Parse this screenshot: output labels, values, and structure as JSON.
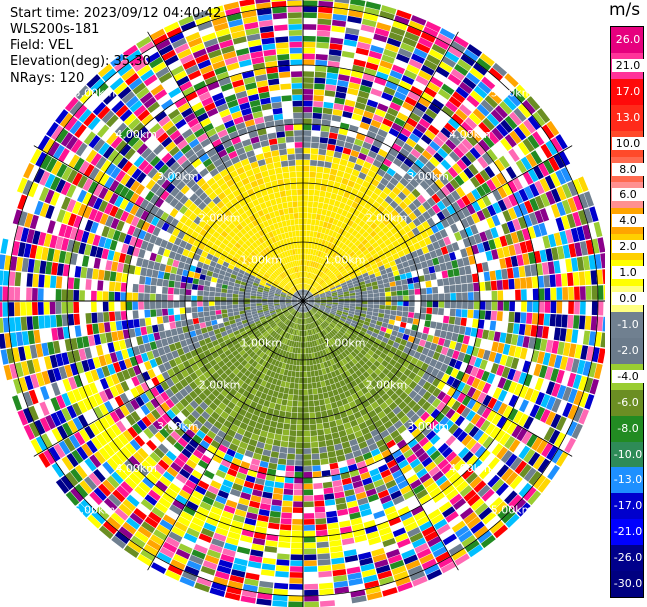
{
  "header": {
    "start_time": "Start time: 2023/09/12 04:40:42",
    "instrument": "WLS200s-181",
    "field": "Field: VEL",
    "elevation": "Elevation(deg): 35.30",
    "nrays": "NRays: 120"
  },
  "chart_data": {
    "type": "ppi-polar",
    "units": "m/s",
    "range_rings_km": [
      1,
      2,
      3,
      4,
      5
    ],
    "range_ring_labels": [
      "1.00km",
      "2.00km",
      "3.00km",
      "4.00km",
      "5.00km"
    ],
    "n_rays": 120,
    "max_range_km": 5.2,
    "spokes_deg": [
      0,
      30,
      60,
      90,
      120,
      150,
      180,
      210,
      240,
      270,
      300,
      330
    ],
    "colorbar": {
      "tick_labels": [
        "26.0",
        "21.0",
        "17.0",
        "13.0",
        "10.0",
        "8.0",
        "6.0",
        "4.0",
        "2.0",
        "1.0",
        "0.0",
        "-1.0",
        "-2.0",
        "-4.0",
        "-6.0",
        "-8.0",
        "-10.0",
        "-13.0",
        "-17.0",
        "-21.0",
        "-26.0",
        "-30.0"
      ],
      "colors": [
        "#e6007e",
        "#ff3399",
        "#ff0a0a",
        "#ff2a1a",
        "#ff4a2a",
        "#ff6a50",
        "#ff9090",
        "#ffa500",
        "#ffd000",
        "#ffff00",
        "#ffff80",
        "#708090",
        "#6b7b8b",
        "#9acd32",
        "#6b8e23",
        "#228b22",
        "#2e8b57",
        "#1e90ff",
        "#0000cd",
        "#0000ff",
        "#00008b",
        "#000080"
      ]
    },
    "palette_noise": [
      "#ff1493",
      "#ff0000",
      "#ffa500",
      "#ffd700",
      "#ffff00",
      "#9acd32",
      "#6b8e23",
      "#228b22",
      "#1e90ff",
      "#0000cd",
      "#00008b",
      "#8b008b",
      "#708090",
      "#ffffff",
      "#ff69b4",
      "#00bfff"
    ],
    "fields": {
      "inner_positive_color": "#ffea00",
      "inner_positive_color2": "#ffd200",
      "inner_negative_color": "#6b8e23",
      "inner_negative_color2": "#8db32a",
      "zero_color": "#708090"
    }
  }
}
